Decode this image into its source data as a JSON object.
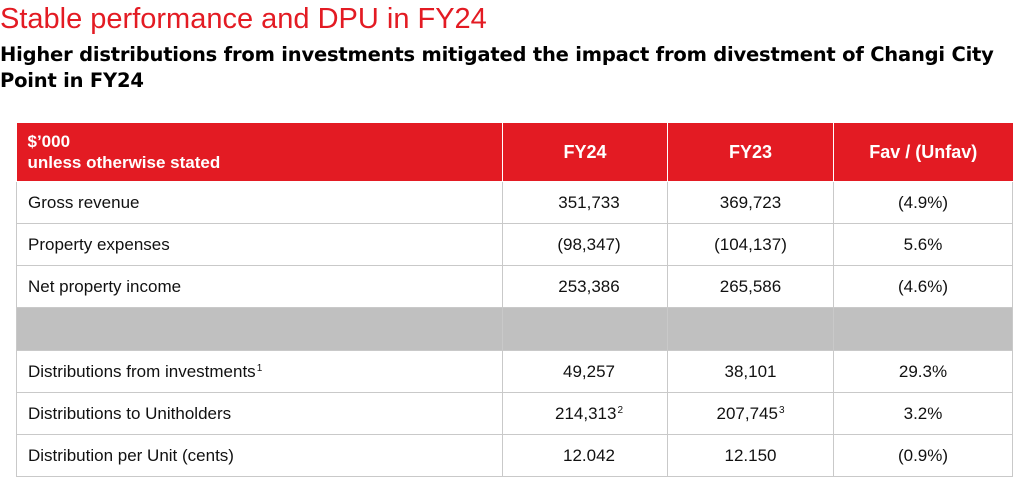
{
  "header": {
    "title": "Stable performance and DPU in FY24",
    "subtitle": "Higher distributions from investments mitigated the impact from divestment of Changi City Point in FY24"
  },
  "table": {
    "unit_line1": "$’000",
    "unit_line2": "unless otherwise stated",
    "columns": [
      "FY24",
      "FY23",
      "Fav / (Unfav)"
    ],
    "rows": [
      {
        "label": "Gross revenue",
        "label_sup": "",
        "fy24": "351,733",
        "fy24_sup": "",
        "fy23": "369,723",
        "fy23_sup": "",
        "change": "(4.9%)"
      },
      {
        "label": "Property expenses",
        "label_sup": "",
        "fy24": "(98,347)",
        "fy24_sup": "",
        "fy23": "(104,137)",
        "fy23_sup": "",
        "change": "5.6%"
      },
      {
        "label": "Net property income",
        "label_sup": "",
        "fy24": "253,386",
        "fy24_sup": "",
        "fy23": "265,586",
        "fy23_sup": "",
        "change": "(4.6%)"
      },
      {
        "label": "Distributions from investments",
        "label_sup": "1",
        "fy24": "49,257",
        "fy24_sup": "",
        "fy23": "38,101",
        "fy23_sup": "",
        "change": "29.3%"
      },
      {
        "label": "Distributions to Unitholders",
        "label_sup": "",
        "fy24": "214,313",
        "fy24_sup": "2",
        "fy23": "207,745",
        "fy23_sup": "3",
        "change": "3.2%"
      },
      {
        "label": "Distribution per Unit (cents)",
        "label_sup": "",
        "fy24": "12.042",
        "fy24_sup": "",
        "fy23": "12.150",
        "fy23_sup": "",
        "change": "(0.9%)"
      }
    ]
  },
  "colors": {
    "accent": "#e31b23",
    "spacer": "#c0c0c0",
    "grid": "#c9c9c9"
  }
}
